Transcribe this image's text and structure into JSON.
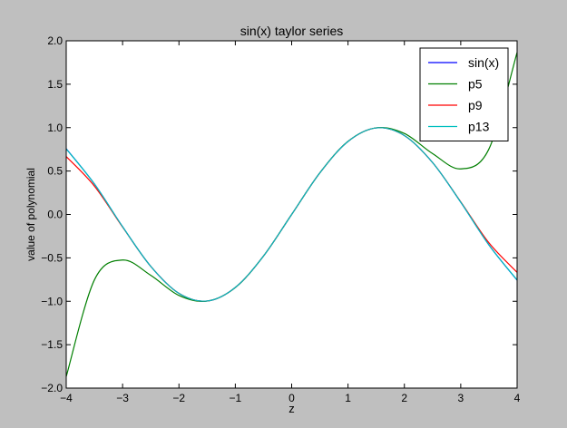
{
  "chart_data": {
    "type": "line",
    "title": "sin(x) taylor series",
    "xlabel": "z",
    "ylabel": "value of polynomial",
    "xlim": [
      -4,
      4
    ],
    "ylim": [
      -2.0,
      2.0
    ],
    "xticks": [
      -4,
      -3,
      -2,
      -1,
      0,
      1,
      2,
      3,
      4
    ],
    "xtick_labels": [
      "−4",
      "−3",
      "−2",
      "−1",
      "0",
      "1",
      "2",
      "3",
      "4"
    ],
    "yticks": [
      -2.0,
      -1.5,
      -1.0,
      -0.5,
      0.0,
      0.5,
      1.0,
      1.5,
      2.0
    ],
    "ytick_labels": [
      "−2.0",
      "−1.5",
      "−1.0",
      "−0.5",
      "0.0",
      "0.5",
      "1.0",
      "1.5",
      "2.0"
    ],
    "grid": false,
    "legend_position": "top-right",
    "x": [
      -4.0,
      -3.5,
      -3.0,
      -2.5,
      -2.0,
      -1.5,
      -1.0,
      -0.5,
      0.0,
      0.5,
      1.0,
      1.5,
      2.0,
      2.5,
      3.0,
      3.5,
      4.0
    ],
    "series": [
      {
        "name": "sin(x)",
        "color": "#0000ff",
        "values": [
          0.757,
          0.351,
          -0.141,
          -0.598,
          -0.909,
          -0.997,
          -0.841,
          -0.479,
          0.0,
          0.479,
          0.841,
          0.997,
          0.909,
          0.598,
          0.141,
          -0.351,
          -0.757
        ]
      },
      {
        "name": "p5",
        "color": "#007f00",
        "values": [
          -1.867,
          -0.754,
          -0.525,
          -0.701,
          -0.933,
          -0.998,
          -0.842,
          -0.479,
          0.0,
          0.479,
          0.842,
          0.998,
          0.933,
          0.701,
          0.525,
          0.754,
          1.867
        ]
      },
      {
        "name": "p9",
        "color": "#ff0000",
        "values": [
          0.667,
          0.327,
          -0.145,
          -0.598,
          -0.909,
          -0.997,
          -0.841,
          -0.479,
          0.0,
          0.479,
          0.841,
          0.997,
          0.909,
          0.598,
          0.145,
          -0.327,
          -0.667
        ]
      },
      {
        "name": "p13",
        "color": "#00bfbf",
        "values": [
          0.755,
          0.351,
          -0.141,
          -0.598,
          -0.909,
          -0.997,
          -0.841,
          -0.479,
          0.0,
          0.479,
          0.841,
          0.997,
          0.909,
          0.598,
          0.141,
          -0.351,
          -0.755
        ]
      }
    ]
  }
}
